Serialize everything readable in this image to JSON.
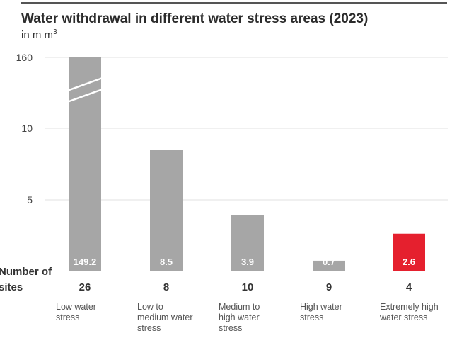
{
  "chart_data": {
    "type": "bar",
    "title": "Water withdrawal in different water stress areas (2023)",
    "subtitle_prefix": "in m m",
    "subtitle_sup": "3",
    "y_ticks": [
      "160",
      "10",
      "5"
    ],
    "y_axis_break": true,
    "categories": [
      [
        "Low water",
        "stress"
      ],
      [
        "Low to",
        "medium water",
        "stress"
      ],
      [
        "Medium to",
        "high water",
        "stress"
      ],
      [
        "High water",
        "stress"
      ],
      [
        "Extremely high",
        "water stress"
      ]
    ],
    "values": [
      149.2,
      8.5,
      3.9,
      0.7,
      2.6
    ],
    "value_labels": [
      "149.2",
      "8.5",
      "3.9",
      "0.7",
      "2.6"
    ],
    "bar_colors": [
      "#a6a6a6",
      "#a6a6a6",
      "#a6a6a6",
      "#a6a6a6",
      "#e5202e"
    ],
    "sites_label": [
      "Number of",
      "sites"
    ],
    "sites": [
      "26",
      "8",
      "10",
      "9",
      "4"
    ],
    "grid": true
  }
}
